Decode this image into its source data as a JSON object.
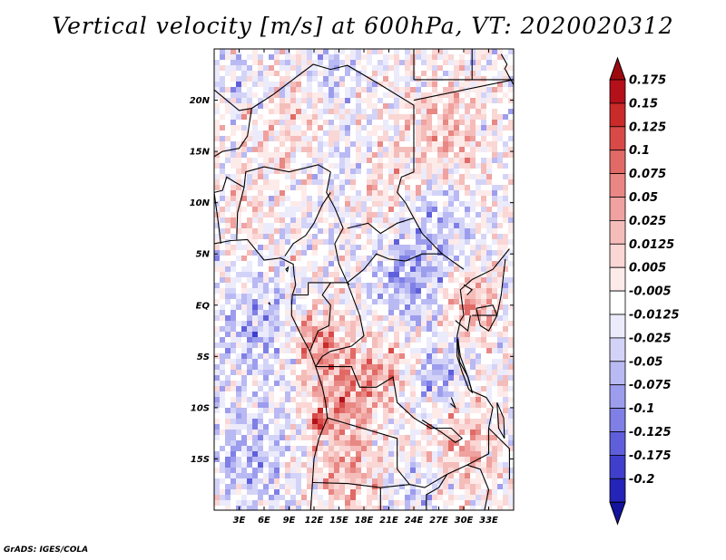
{
  "title": "Vertical velocity [m/s] at 600hPa, VT: 2020020312",
  "footer": "GrADS: IGES/COLA",
  "map": {
    "lon_range": [
      0,
      36
    ],
    "lat_range": [
      -20,
      25
    ],
    "lat_ticks": [
      {
        "value": 20,
        "label": "20N"
      },
      {
        "value": 15,
        "label": "15N"
      },
      {
        "value": 10,
        "label": "10N"
      },
      {
        "value": 5,
        "label": "5N"
      },
      {
        "value": 0,
        "label": "EQ"
      },
      {
        "value": -5,
        "label": "5S"
      },
      {
        "value": -10,
        "label": "10S"
      },
      {
        "value": -15,
        "label": "15S"
      }
    ],
    "lon_ticks": [
      {
        "value": 3,
        "label": "3E"
      },
      {
        "value": 6,
        "label": "6E"
      },
      {
        "value": 9,
        "label": "9E"
      },
      {
        "value": 12,
        "label": "12E"
      },
      {
        "value": 15,
        "label": "15E"
      },
      {
        "value": 18,
        "label": "18E"
      },
      {
        "value": 21,
        "label": "21E"
      },
      {
        "value": 24,
        "label": "24E"
      },
      {
        "value": 27,
        "label": "27E"
      },
      {
        "value": 30,
        "label": "30E"
      },
      {
        "value": 33,
        "label": "33E"
      }
    ]
  },
  "colorbar": {
    "levels": [
      {
        "label": "0.175",
        "color": "#b3101a"
      },
      {
        "label": "0.15",
        "color": "#c92a2a"
      },
      {
        "label": "0.125",
        "color": "#d84a48"
      },
      {
        "label": "0.1",
        "color": "#e16a66"
      },
      {
        "label": "0.075",
        "color": "#e88783"
      },
      {
        "label": "0.05",
        "color": "#efa29f"
      },
      {
        "label": "0.025",
        "color": "#f5bdba"
      },
      {
        "label": "0.0125",
        "color": "#fad6d4"
      },
      {
        "label": "0.005",
        "color": "#fdebea"
      },
      {
        "label": "-0.005",
        "color": "#ffffff"
      },
      {
        "label": "-0.0125",
        "color": "#ebebfc"
      },
      {
        "label": "-0.025",
        "color": "#d3d3f8"
      },
      {
        "label": "-0.05",
        "color": "#b9b9f3"
      },
      {
        "label": "-0.075",
        "color": "#9d9dee"
      },
      {
        "label": "-0.1",
        "color": "#7f7fe6"
      },
      {
        "label": "-0.125",
        "color": "#5f5fdc"
      },
      {
        "label": "-0.175",
        "color": "#3f3fcc"
      },
      {
        "label": "-0.2",
        "color": "#2424b8"
      }
    ],
    "top_arrow_color": "#9c0a10",
    "bottom_arrow_color": "#13139e"
  },
  "field_regions": [
    {
      "lon": 12.5,
      "lat": -3.5,
      "radius": 3.2,
      "sign": 1,
      "strength": 0.9
    },
    {
      "lon": 15.5,
      "lat": -9,
      "radius": 3.5,
      "sign": 1,
      "strength": 0.8
    },
    {
      "lon": 20,
      "lat": -6,
      "radius": 4,
      "sign": 1,
      "strength": 0.55
    },
    {
      "lon": 31,
      "lat": 0,
      "radius": 3,
      "sign": 1,
      "strength": 0.7
    },
    {
      "lon": 30,
      "lat": -14,
      "radius": 4,
      "sign": 1,
      "strength": 0.6
    },
    {
      "lon": 16,
      "lat": -16,
      "radius": 4,
      "sign": 1,
      "strength": 0.7
    },
    {
      "lon": 12.5,
      "lat": -11.5,
      "radius": 1.2,
      "sign": 1,
      "strength": 1.0
    },
    {
      "lon": 28,
      "lat": 17,
      "radius": 5,
      "sign": 1,
      "strength": 0.5
    },
    {
      "lon": 9,
      "lat": 17,
      "radius": 5,
      "sign": 1,
      "strength": 0.35
    },
    {
      "lon": 20,
      "lat": 12,
      "radius": 4,
      "sign": 1,
      "strength": 0.35
    },
    {
      "lon": 4,
      "lat": 9,
      "radius": 3,
      "sign": 1,
      "strength": 0.3
    },
    {
      "lon": 23,
      "lat": 2,
      "radius": 4,
      "sign": -1,
      "strength": 0.7
    },
    {
      "lon": 27,
      "lat": -7,
      "radius": 3,
      "sign": -1,
      "strength": 0.6
    },
    {
      "lon": 5,
      "lat": -2,
      "radius": 5,
      "sign": -1,
      "strength": 0.55
    },
    {
      "lon": 4,
      "lat": -15,
      "radius": 5,
      "sign": -1,
      "strength": 0.5
    },
    {
      "lon": 27,
      "lat": 8,
      "radius": 4,
      "sign": -1,
      "strength": 0.5
    },
    {
      "lon": 15,
      "lat": 14,
      "radius": 4,
      "sign": -1,
      "strength": 0.35
    },
    {
      "lon": 14,
      "lat": 23,
      "radius": 3,
      "sign": -1,
      "strength": 0.45
    },
    {
      "lon": 3,
      "lat": 22,
      "radius": 3,
      "sign": -1,
      "strength": 0.3
    },
    {
      "lon": 24,
      "lat": -18,
      "radius": 3,
      "sign": -1,
      "strength": 0.4
    }
  ]
}
